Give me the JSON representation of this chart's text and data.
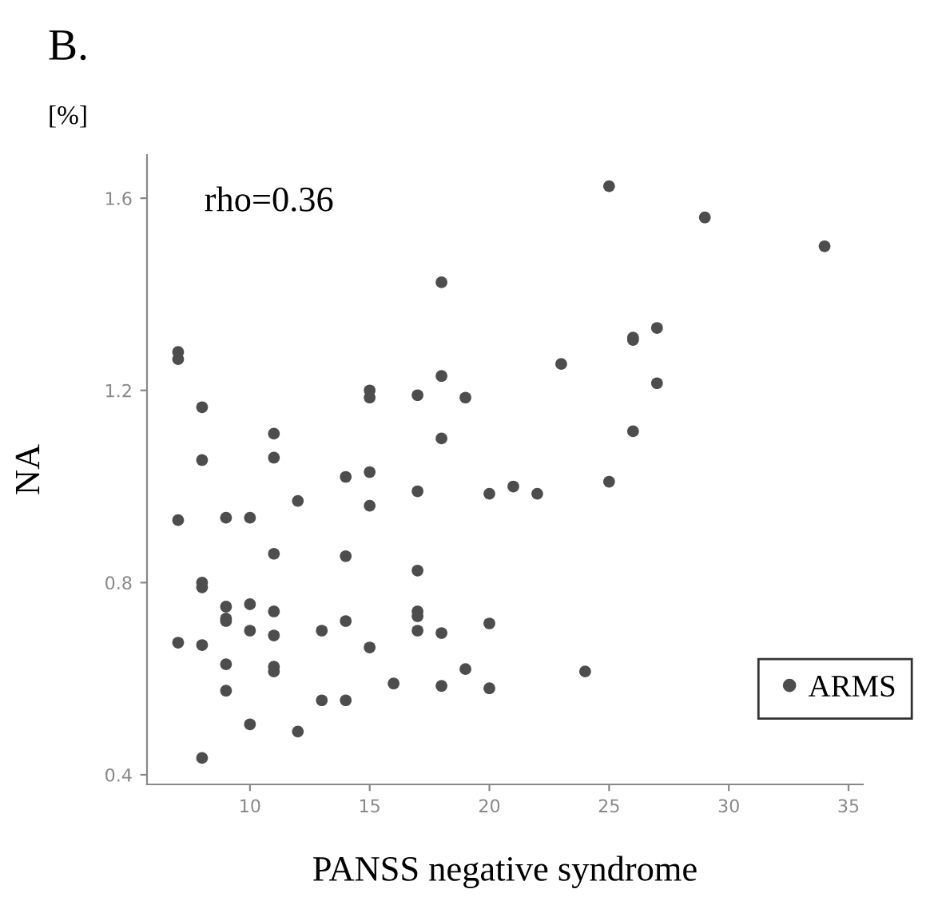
{
  "chart_data": {
    "type": "scatter",
    "title": "B.",
    "xlabel": "PANSS negative syndrome",
    "ylabel": "NA",
    "annotations": [
      "[%]",
      "rho=0.36"
    ],
    "series": [
      {
        "name": "ARMS",
        "color": "#4d4d4d",
        "x": [
          7,
          7,
          7,
          7,
          8,
          8,
          8,
          8,
          8,
          8,
          9,
          9,
          9,
          9,
          9,
          9,
          10,
          10,
          10,
          10,
          11,
          11,
          11,
          11,
          11,
          11,
          11,
          12,
          12,
          13,
          13,
          14,
          14,
          14,
          14,
          15,
          15,
          15,
          15,
          15,
          16,
          17,
          17,
          17,
          17,
          17,
          17,
          18,
          18,
          18,
          18,
          18,
          19,
          19,
          20,
          20,
          20,
          21,
          22,
          23,
          24,
          25,
          25,
          26,
          26,
          26,
          27,
          27,
          29,
          34
        ],
        "values": [
          1.28,
          1.265,
          0.93,
          0.675,
          1.165,
          1.055,
          0.8,
          0.79,
          0.67,
          0.435,
          0.935,
          0.75,
          0.725,
          0.72,
          0.63,
          0.575,
          0.935,
          0.755,
          0.7,
          0.505,
          1.11,
          1.06,
          0.86,
          0.74,
          0.69,
          0.625,
          0.615,
          0.97,
          0.49,
          0.7,
          0.555,
          1.02,
          0.855,
          0.72,
          0.555,
          1.2,
          1.185,
          1.03,
          0.96,
          0.665,
          0.59,
          1.19,
          0.99,
          0.825,
          0.74,
          0.73,
          0.7,
          1.425,
          1.23,
          1.1,
          0.695,
          0.585,
          1.185,
          0.62,
          0.985,
          0.715,
          0.58,
          1.0,
          0.985,
          1.255,
          0.615,
          1.625,
          1.01,
          1.31,
          1.305,
          1.115,
          1.33,
          1.215,
          1.56,
          1.5
        ]
      }
    ],
    "xlim": [
      5.7,
      35.6
    ],
    "ylim": [
      0.38,
      1.69
    ],
    "xticks": [
      10,
      15,
      20,
      25,
      30,
      35
    ],
    "yticks": [
      {
        "value": 0.4,
        "label": "0.4"
      },
      {
        "value": 0.8,
        "label": "0.8"
      },
      {
        "value": 1.2,
        "label": "1.2"
      },
      {
        "value": 1.6,
        "label": "1.6"
      }
    ],
    "grid": false,
    "legend": "bottom right",
    "marker": "circle"
  }
}
